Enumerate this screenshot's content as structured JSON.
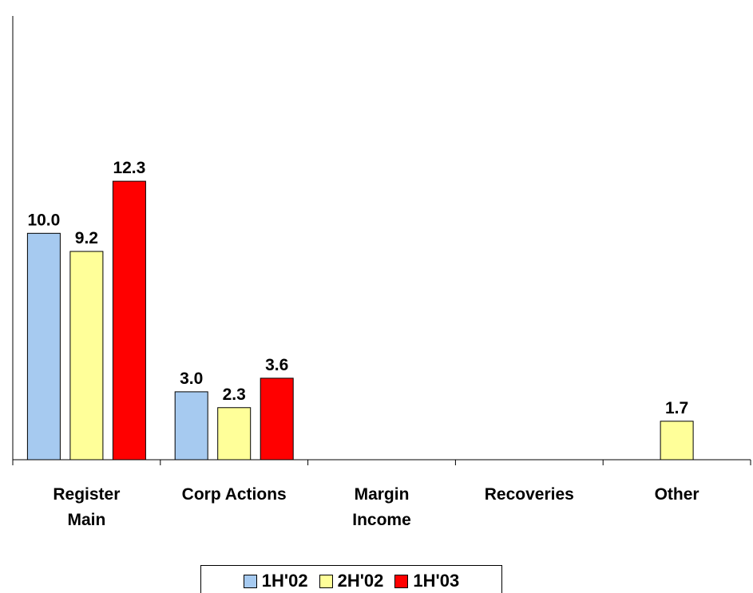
{
  "chart_data": {
    "type": "bar",
    "categories": [
      "Register\nMain",
      "Corp Actions",
      "Margin\nIncome",
      "Recoveries",
      "Other"
    ],
    "series": [
      {
        "name": "1H'02",
        "color": "#a6caf0",
        "values": [
          10.0,
          3.0,
          null,
          null,
          null
        ],
        "value_labels": [
          "10.0",
          "3.0",
          null,
          null,
          null
        ]
      },
      {
        "name": "2H'02",
        "color": "#ffff99",
        "values": [
          9.2,
          2.3,
          null,
          null,
          1.7
        ],
        "value_labels": [
          "9.2",
          "2.3",
          null,
          null,
          "1.7"
        ]
      },
      {
        "name": "1H'03",
        "color": "#ff0000",
        "values": [
          12.3,
          3.6,
          null,
          null,
          null
        ],
        "value_labels": [
          "12.3",
          "3.6",
          null,
          null,
          null
        ]
      }
    ],
    "ylim": [
      0,
      19.6
    ],
    "grid": false,
    "legend": "bottom"
  }
}
